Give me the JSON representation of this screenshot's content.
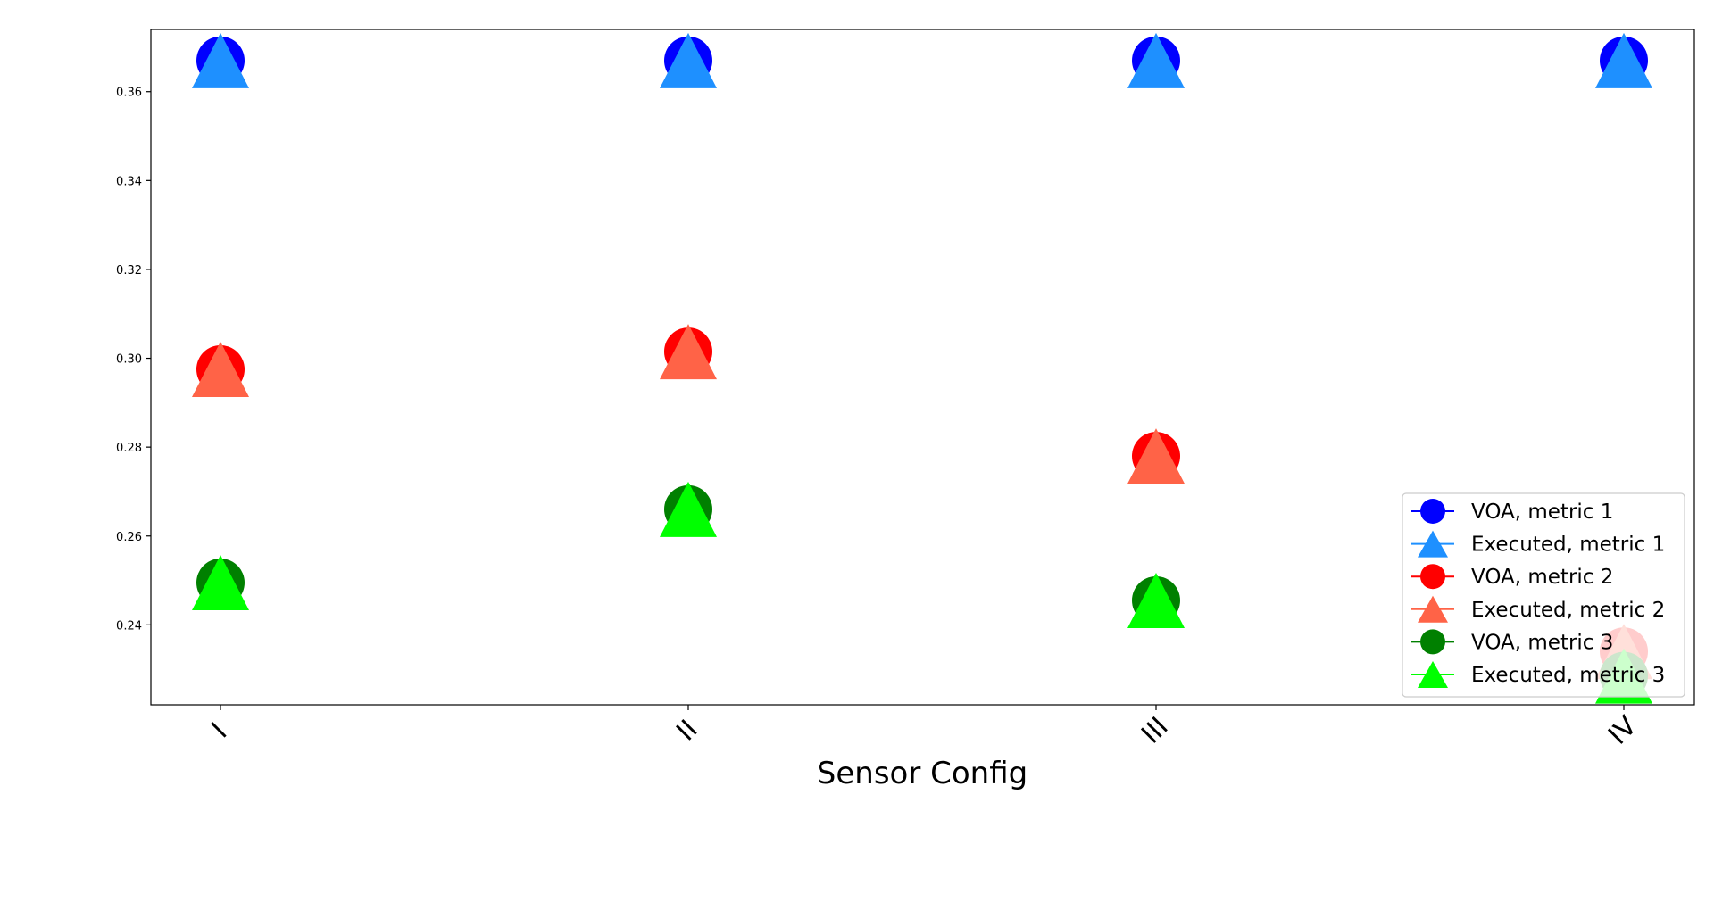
{
  "chart_data": {
    "type": "scatter",
    "title": "",
    "xlabel": "Sensor Config",
    "ylabel": "",
    "categories": [
      "I",
      "II",
      "III",
      "IV"
    ],
    "ylim": [
      0.222,
      0.374
    ],
    "yticks": [
      "0.24",
      "0.26",
      "0.28",
      "0.30",
      "0.32",
      "0.34",
      "0.36"
    ],
    "grid": false,
    "legend_position": "lower-right",
    "series": [
      {
        "name": "VOA, metric 1",
        "marker": "circle",
        "color": "#0000ff",
        "values": [
          0.367,
          0.367,
          0.367,
          0.367
        ]
      },
      {
        "name": "Executed, metric 1",
        "marker": "triangle",
        "color": "#1e90ff",
        "values": [
          0.367,
          0.367,
          0.367,
          0.367
        ]
      },
      {
        "name": "VOA, metric 2",
        "marker": "circle",
        "color": "#ff0000",
        "values": [
          0.2975,
          0.3015,
          0.278,
          0.234
        ]
      },
      {
        "name": "Executed, metric 2",
        "marker": "triangle",
        "color": "#ff6347",
        "values": [
          0.2975,
          0.3015,
          0.278,
          0.234
        ]
      },
      {
        "name": "VOA, metric 3",
        "marker": "circle",
        "color": "#008000",
        "values": [
          0.2495,
          0.266,
          0.2455,
          0.2285
        ]
      },
      {
        "name": "Executed, metric 3",
        "marker": "triangle",
        "color": "#00ff00",
        "values": [
          0.2495,
          0.266,
          0.2455,
          0.2285
        ]
      }
    ]
  }
}
